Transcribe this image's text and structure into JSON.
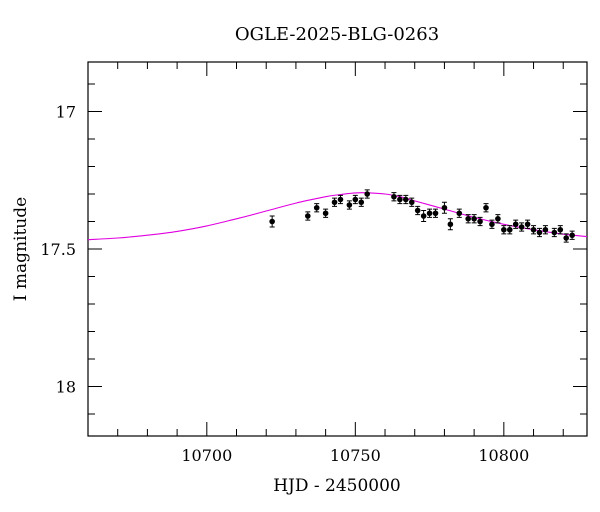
{
  "chart_data": {
    "type": "scatter",
    "title": "OGLE-2025-BLG-0263",
    "xlabel": "HJD - 2450000",
    "ylabel": "I magnitude",
    "xlim": [
      10660,
      10828
    ],
    "ylim": [
      17.0,
      18.0
    ],
    "y_axis_min_shown": 16.82,
    "y_axis_max_shown": 18.18,
    "y_inverted": true,
    "x_ticks": [
      10700,
      10750,
      10800
    ],
    "x_tick_labels": [
      "10700",
      "10750",
      "10800"
    ],
    "y_ticks": [
      17,
      17.5,
      18
    ],
    "y_tick_labels": [
      "17",
      "17.5",
      "18"
    ],
    "grid": false,
    "legend": "none",
    "model_color": "#e000e0",
    "point_color": "#000000",
    "model_curve": {
      "x": [
        10660,
        10670,
        10680,
        10690,
        10700,
        10710,
        10720,
        10730,
        10740,
        10745,
        10750,
        10755,
        10760,
        10765,
        10770,
        10780,
        10790,
        10800,
        10810,
        10820,
        10828
      ],
      "y": [
        17.466,
        17.46,
        17.45,
        17.436,
        17.416,
        17.39,
        17.362,
        17.333,
        17.31,
        17.302,
        17.296,
        17.296,
        17.3,
        17.31,
        17.325,
        17.355,
        17.385,
        17.41,
        17.43,
        17.446,
        17.455
      ]
    },
    "series": [
      {
        "x": [
          10722,
          10734,
          10737,
          10740,
          10743,
          10745,
          10748,
          10750,
          10752,
          10754,
          10763,
          10765,
          10767,
          10769,
          10771,
          10773,
          10775,
          10777,
          10780,
          10782,
          10785,
          10788,
          10790,
          10792,
          10794,
          10796,
          10798,
          10800,
          10802,
          10804,
          10806,
          10808,
          10810,
          10812,
          10814,
          10817,
          10819,
          10821,
          10823
        ],
        "y": [
          17.4,
          17.38,
          17.35,
          17.37,
          17.33,
          17.32,
          17.34,
          17.32,
          17.33,
          17.3,
          17.31,
          17.32,
          17.32,
          17.33,
          17.36,
          17.38,
          17.37,
          17.37,
          17.35,
          17.41,
          17.37,
          17.39,
          17.39,
          17.4,
          17.35,
          17.41,
          17.39,
          17.43,
          17.43,
          17.41,
          17.42,
          17.41,
          17.43,
          17.44,
          17.43,
          17.44,
          17.43,
          17.46,
          17.45
        ],
        "err": [
          0.02,
          0.015,
          0.015,
          0.015,
          0.015,
          0.015,
          0.015,
          0.015,
          0.015,
          0.015,
          0.015,
          0.015,
          0.015,
          0.015,
          0.015,
          0.02,
          0.015,
          0.015,
          0.02,
          0.02,
          0.015,
          0.015,
          0.015,
          0.015,
          0.015,
          0.015,
          0.015,
          0.015,
          0.015,
          0.015,
          0.015,
          0.015,
          0.015,
          0.015,
          0.015,
          0.015,
          0.015,
          0.015,
          0.015
        ]
      }
    ]
  }
}
